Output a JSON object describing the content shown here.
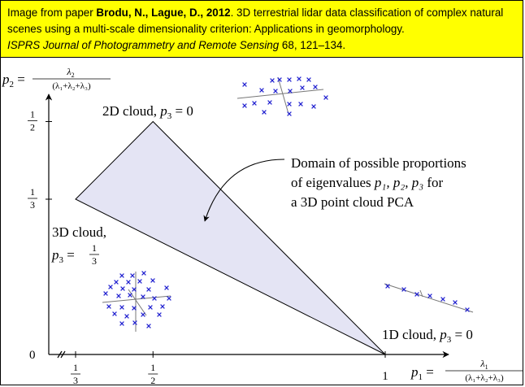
{
  "citation": {
    "prefix": "Image from paper ",
    "authors": "Brodu, N., Lague, D., 2012",
    "title": ". 3D terrestrial lidar data classification of complex natural scenes using a multi-scale dimensionality criterion: Applications in geomorphology.",
    "journal": "ISPRS Journal of Photogrammetry and Remote Sensing",
    "pages": " 68, 121–134."
  },
  "axes": {
    "y_label": {
      "var": "p",
      "sub": "2",
      "num": "λ",
      "num_sub": "2",
      "den": "(λ₁+λ₂+λ₃)"
    },
    "x_label": {
      "var": "p",
      "sub": "1",
      "num": "λ",
      "num_sub": "1",
      "den": "(λ₁+λ₂+λ₃)"
    },
    "y_ticks": [
      {
        "value": 0.5,
        "num": "1",
        "den": "2"
      },
      {
        "value": 0.3333,
        "num": "1",
        "den": "3"
      }
    ],
    "origin_label": "0",
    "x_ticks": [
      {
        "value": 0.3333,
        "num": "1",
        "den": "3"
      },
      {
        "value": 0.5,
        "num": "1",
        "den": "2"
      },
      {
        "value": 1,
        "label": "1"
      }
    ]
  },
  "domain_triangle": {
    "vertices": [
      [
        0.3333,
        0.3333
      ],
      [
        0.5,
        0.5
      ],
      [
        1,
        0
      ]
    ],
    "fill": "#e4e4f4"
  },
  "annotations": {
    "cloud_2d": {
      "text": "2D cloud, ",
      "var": "p",
      "sub": "3",
      "rest": " = 0"
    },
    "cloud_3d": {
      "line1": "3D cloud,",
      "var": "p",
      "sub": "3",
      "num": "1",
      "den": "3"
    },
    "cloud_1d": {
      "text": "1D cloud, ",
      "var": "p",
      "sub": "3",
      "rest": " = 0"
    },
    "domain": {
      "line1": "Domain of possible proportions",
      "line2": "of eigenvalues ",
      "line2_vars": "p₁, p₂, p₃",
      "line2_end": " for",
      "line3": "a 3D point cloud PCA"
    }
  },
  "colors": {
    "marker": "#2020d0",
    "axis": "#000000",
    "pca_axis": "#777777",
    "highlight": "#ffff00"
  },
  "icons": {
    "marker": "x-mark"
  }
}
